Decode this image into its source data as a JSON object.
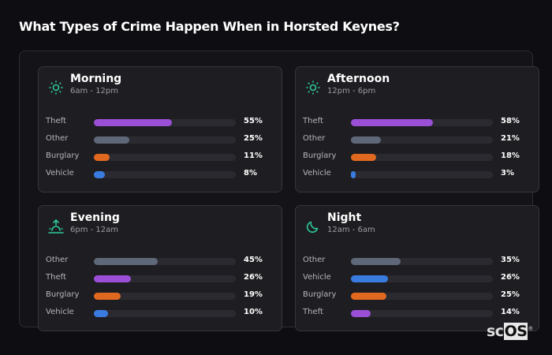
{
  "title": "What Types of Crime Happen When in Horsted Keynes?",
  "colors": {
    "Theft": "#9b4fd6",
    "Other": "#5f6878",
    "Burglary": "#e0691f",
    "Vehicle": "#3a7be0",
    "icon": "#2ec79a"
  },
  "cards": [
    {
      "name": "Morning",
      "time": "6am - 12pm",
      "icon": "sun-icon",
      "rows": [
        {
          "label": "Theft",
          "value": 55,
          "pct": "55%"
        },
        {
          "label": "Other",
          "value": 25,
          "pct": "25%"
        },
        {
          "label": "Burglary",
          "value": 11,
          "pct": "11%"
        },
        {
          "label": "Vehicle",
          "value": 8,
          "pct": "8%"
        }
      ]
    },
    {
      "name": "Afternoon",
      "time": "12pm - 6pm",
      "icon": "sun-icon",
      "rows": [
        {
          "label": "Theft",
          "value": 58,
          "pct": "58%"
        },
        {
          "label": "Other",
          "value": 21,
          "pct": "21%"
        },
        {
          "label": "Burglary",
          "value": 18,
          "pct": "18%"
        },
        {
          "label": "Vehicle",
          "value": 3,
          "pct": "3%"
        }
      ]
    },
    {
      "name": "Evening",
      "time": "6pm - 12am",
      "icon": "sunset-icon",
      "rows": [
        {
          "label": "Other",
          "value": 45,
          "pct": "45%"
        },
        {
          "label": "Theft",
          "value": 26,
          "pct": "26%"
        },
        {
          "label": "Burglary",
          "value": 19,
          "pct": "19%"
        },
        {
          "label": "Vehicle",
          "value": 10,
          "pct": "10%"
        }
      ]
    },
    {
      "name": "Night",
      "time": "12am - 6am",
      "icon": "moon-icon",
      "rows": [
        {
          "label": "Other",
          "value": 35,
          "pct": "35%"
        },
        {
          "label": "Vehicle",
          "value": 26,
          "pct": "26%"
        },
        {
          "label": "Burglary",
          "value": 25,
          "pct": "25%"
        },
        {
          "label": "Theft",
          "value": 14,
          "pct": "14%"
        }
      ]
    }
  ],
  "logo": {
    "text_a": "sc",
    "text_b": "OS",
    "mark": "®"
  }
}
